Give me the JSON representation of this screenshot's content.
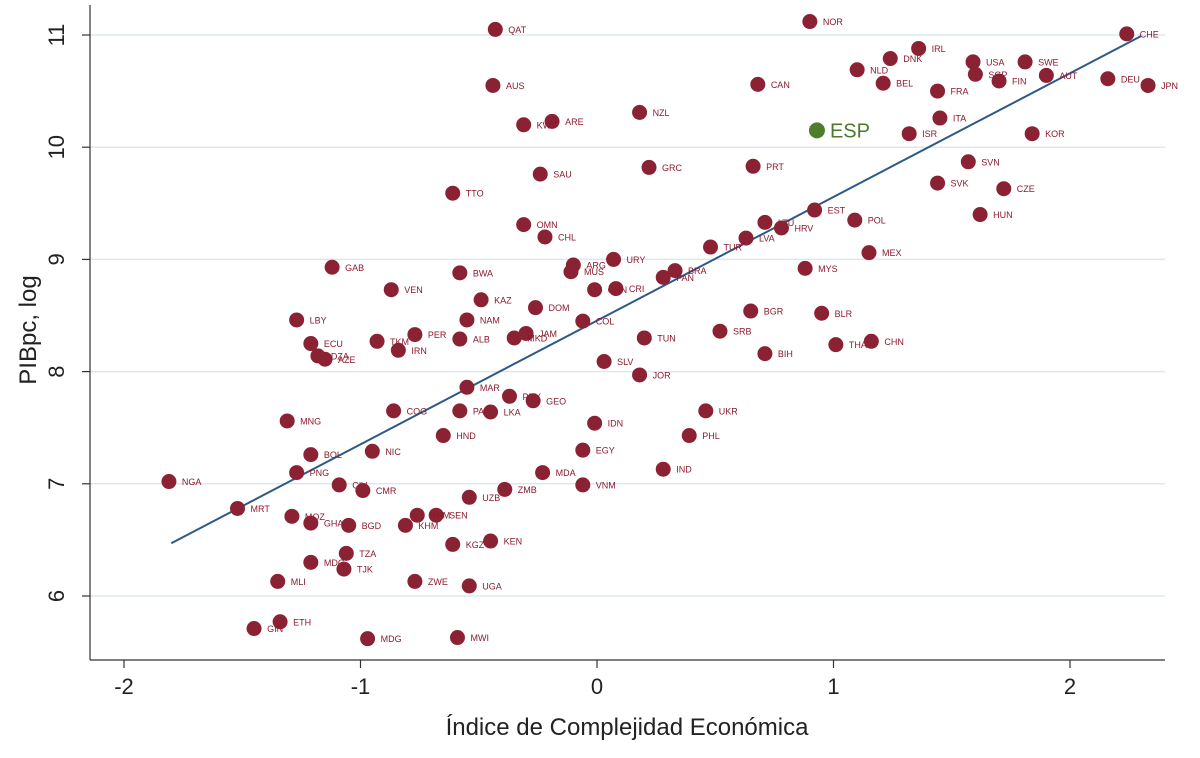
{
  "chart_data": {
    "type": "scatter",
    "title": "",
    "xlabel": "Índice de Complejidad Económica",
    "ylabel": "PIBpc, log",
    "xlim": [
      -2.2,
      2.4
    ],
    "ylim": [
      5.4,
      11.25
    ],
    "xticks": [
      "-2",
      "-1",
      "0",
      "1",
      "2"
    ],
    "yticks": [
      "6",
      "7",
      "8",
      "9",
      "10",
      "11"
    ],
    "grid": "horizontal",
    "colors": {
      "point": "#8B2233",
      "highlight": "#4E7D2E",
      "fit_line": "#2C5A85",
      "grid": "#dce8ef"
    },
    "fit_line": {
      "x": [
        -1.8,
        2.3
      ],
      "y": [
        6.47,
        10.99
      ]
    },
    "highlight": {
      "label": "ESP",
      "x": 0.93,
      "y": 10.15
    },
    "points": [
      {
        "label": "NOR",
        "x": 0.9,
        "y": 11.12
      },
      {
        "label": "QAT",
        "x": -0.43,
        "y": 11.05
      },
      {
        "label": "CHE",
        "x": 2.24,
        "y": 11.01
      },
      {
        "label": "IRL",
        "x": 1.36,
        "y": 10.88
      },
      {
        "label": "DNK",
        "x": 1.24,
        "y": 10.79
      },
      {
        "label": "USA",
        "x": 1.59,
        "y": 10.76
      },
      {
        "label": "SWE",
        "x": 1.81,
        "y": 10.76
      },
      {
        "label": "NLD",
        "x": 1.1,
        "y": 10.69
      },
      {
        "label": "AUT",
        "x": 1.9,
        "y": 10.64
      },
      {
        "label": "SGP",
        "x": 1.6,
        "y": 10.65
      },
      {
        "label": "FIN",
        "x": 1.7,
        "y": 10.59
      },
      {
        "label": "DEU",
        "x": 2.16,
        "y": 10.61
      },
      {
        "label": "JPN",
        "x": 2.33,
        "y": 10.55
      },
      {
        "label": "BEL",
        "x": 1.21,
        "y": 10.57
      },
      {
        "label": "CAN",
        "x": 0.68,
        "y": 10.56
      },
      {
        "label": "AUS",
        "x": -0.44,
        "y": 10.55
      },
      {
        "label": "FRA",
        "x": 1.44,
        "y": 10.5
      },
      {
        "label": "NZL",
        "x": 0.18,
        "y": 10.31
      },
      {
        "label": "ITA",
        "x": 1.45,
        "y": 10.26
      },
      {
        "label": "ARE",
        "x": -0.19,
        "y": 10.23
      },
      {
        "label": "KWT",
        "x": -0.31,
        "y": 10.2
      },
      {
        "label": "ISR",
        "x": 1.32,
        "y": 10.12
      },
      {
        "label": "KOR",
        "x": 1.84,
        "y": 10.12
      },
      {
        "label": "SVN",
        "x": 1.57,
        "y": 9.87
      },
      {
        "label": "GRC",
        "x": 0.22,
        "y": 9.82
      },
      {
        "label": "PRT",
        "x": 0.66,
        "y": 9.83
      },
      {
        "label": "SAU",
        "x": -0.24,
        "y": 9.76
      },
      {
        "label": "SVK",
        "x": 1.44,
        "y": 9.68
      },
      {
        "label": "CZE",
        "x": 1.72,
        "y": 9.63
      },
      {
        "label": "TTO",
        "x": -0.61,
        "y": 9.59
      },
      {
        "label": "EST",
        "x": 0.92,
        "y": 9.44
      },
      {
        "label": "HUN",
        "x": 1.62,
        "y": 9.4
      },
      {
        "label": "POL",
        "x": 1.09,
        "y": 9.35
      },
      {
        "label": "LTU",
        "x": 0.71,
        "y": 9.33
      },
      {
        "label": "HRV",
        "x": 0.78,
        "y": 9.28
      },
      {
        "label": "OMN",
        "x": -0.31,
        "y": 9.31
      },
      {
        "label": "CHL",
        "x": -0.22,
        "y": 9.2
      },
      {
        "label": "LVA",
        "x": 0.63,
        "y": 9.19
      },
      {
        "label": "TUR",
        "x": 0.48,
        "y": 9.11
      },
      {
        "label": "MEX",
        "x": 1.15,
        "y": 9.06
      },
      {
        "label": "URY",
        "x": 0.07,
        "y": 9.0
      },
      {
        "label": "ARG",
        "x": -0.1,
        "y": 8.95
      },
      {
        "label": "GAB",
        "x": -1.12,
        "y": 8.93
      },
      {
        "label": "MYS",
        "x": 0.88,
        "y": 8.92
      },
      {
        "label": "MUS",
        "x": -0.11,
        "y": 8.89
      },
      {
        "label": "BWA",
        "x": -0.58,
        "y": 8.88
      },
      {
        "label": "BRA",
        "x": 0.33,
        "y": 8.9
      },
      {
        "label": "PAN",
        "x": 0.28,
        "y": 8.84
      },
      {
        "label": "VEN",
        "x": -0.87,
        "y": 8.73
      },
      {
        "label": "CRI",
        "x": 0.08,
        "y": 8.74
      },
      {
        "label": "KAZ",
        "x": -0.49,
        "y": 8.64
      },
      {
        "label": "CHN_",
        "x": -0.01,
        "y": 8.73
      },
      {
        "label": "DOM",
        "x": -0.26,
        "y": 8.57
      },
      {
        "label": "BGR",
        "x": 0.65,
        "y": 8.54
      },
      {
        "label": "BLR",
        "x": 0.95,
        "y": 8.52
      },
      {
        "label": "LBY",
        "x": -1.27,
        "y": 8.46
      },
      {
        "label": "NAM",
        "x": -0.55,
        "y": 8.46
      },
      {
        "label": "COL",
        "x": -0.06,
        "y": 8.45
      },
      {
        "label": "SRB",
        "x": 0.52,
        "y": 8.36
      },
      {
        "label": "PER",
        "x": -0.77,
        "y": 8.33
      },
      {
        "label": "ALB",
        "x": -0.58,
        "y": 8.29
      },
      {
        "label": "JAM",
        "x": -0.3,
        "y": 8.34
      },
      {
        "label": "MKD",
        "x": -0.35,
        "y": 8.3
      },
      {
        "label": "TUN",
        "x": 0.2,
        "y": 8.3
      },
      {
        "label": "THA",
        "x": 1.01,
        "y": 8.24
      },
      {
        "label": "CHN",
        "x": 1.16,
        "y": 8.27
      },
      {
        "label": "TKM",
        "x": -0.93,
        "y": 8.27
      },
      {
        "label": "ECU",
        "x": -1.21,
        "y": 8.25
      },
      {
        "label": "IRN",
        "x": -0.84,
        "y": 8.19
      },
      {
        "label": "BIH",
        "x": 0.71,
        "y": 8.16
      },
      {
        "label": "DZA",
        "x": -1.18,
        "y": 8.14
      },
      {
        "label": "AZE",
        "x": -1.15,
        "y": 8.11
      },
      {
        "label": "SLV",
        "x": 0.03,
        "y": 8.09
      },
      {
        "label": "JOR",
        "x": 0.18,
        "y": 7.97
      },
      {
        "label": "MAR",
        "x": -0.55,
        "y": 7.86
      },
      {
        "label": "PRY",
        "x": -0.37,
        "y": 7.78
      },
      {
        "label": "GEO",
        "x": -0.27,
        "y": 7.74
      },
      {
        "label": "MNG",
        "x": -1.31,
        "y": 7.56
      },
      {
        "label": "COG",
        "x": -0.86,
        "y": 7.65
      },
      {
        "label": "PAK",
        "x": -0.58,
        "y": 7.65
      },
      {
        "label": "LKA",
        "x": -0.45,
        "y": 7.64
      },
      {
        "label": "UKR",
        "x": 0.46,
        "y": 7.65
      },
      {
        "label": "IDN",
        "x": -0.01,
        "y": 7.54
      },
      {
        "label": "HND",
        "x": -0.65,
        "y": 7.43
      },
      {
        "label": "PHL",
        "x": 0.39,
        "y": 7.43
      },
      {
        "label": "EGY",
        "x": -0.06,
        "y": 7.3
      },
      {
        "label": "NIC",
        "x": -0.95,
        "y": 7.29
      },
      {
        "label": "BOL",
        "x": -1.21,
        "y": 7.26
      },
      {
        "label": "IND",
        "x": 0.28,
        "y": 7.13
      },
      {
        "label": "PNG",
        "x": -1.27,
        "y": 7.1
      },
      {
        "label": "MDA",
        "x": -0.23,
        "y": 7.1
      },
      {
        "label": "NGA",
        "x": -1.81,
        "y": 7.02
      },
      {
        "label": "VNM",
        "x": -0.06,
        "y": 6.99
      },
      {
        "label": "CIV",
        "x": -1.09,
        "y": 6.99
      },
      {
        "label": "ZMB",
        "x": -0.39,
        "y": 6.95
      },
      {
        "label": "CMR",
        "x": -0.99,
        "y": 6.94
      },
      {
        "label": "UZB",
        "x": -0.54,
        "y": 6.88
      },
      {
        "label": "MRT",
        "x": -1.52,
        "y": 6.78
      },
      {
        "label": "SEN",
        "x": -0.68,
        "y": 6.72
      },
      {
        "label": "KHM_",
        "x": -0.76,
        "y": 6.72
      },
      {
        "label": "MOZ",
        "x": -1.29,
        "y": 6.71
      },
      {
        "label": "GHA",
        "x": -1.21,
        "y": 6.65
      },
      {
        "label": "BGD",
        "x": -1.05,
        "y": 6.63
      },
      {
        "label": "KHM",
        "x": -0.81,
        "y": 6.63
      },
      {
        "label": "KEN",
        "x": -0.45,
        "y": 6.49
      },
      {
        "label": "KGZ",
        "x": -0.61,
        "y": 6.46
      },
      {
        "label": "TZA",
        "x": -1.06,
        "y": 6.38
      },
      {
        "label": "MDG_",
        "x": -1.21,
        "y": 6.3
      },
      {
        "label": "TJK",
        "x": -1.07,
        "y": 6.24
      },
      {
        "label": "MLI",
        "x": -1.35,
        "y": 6.13
      },
      {
        "label": "ZWE",
        "x": -0.77,
        "y": 6.13
      },
      {
        "label": "UGA",
        "x": -0.54,
        "y": 6.09
      },
      {
        "label": "ETH",
        "x": -1.34,
        "y": 5.77
      },
      {
        "label": "GIN",
        "x": -1.45,
        "y": 5.71
      },
      {
        "label": "MDG",
        "x": -0.97,
        "y": 5.62
      },
      {
        "label": "MWI",
        "x": -0.59,
        "y": 5.63
      }
    ]
  }
}
